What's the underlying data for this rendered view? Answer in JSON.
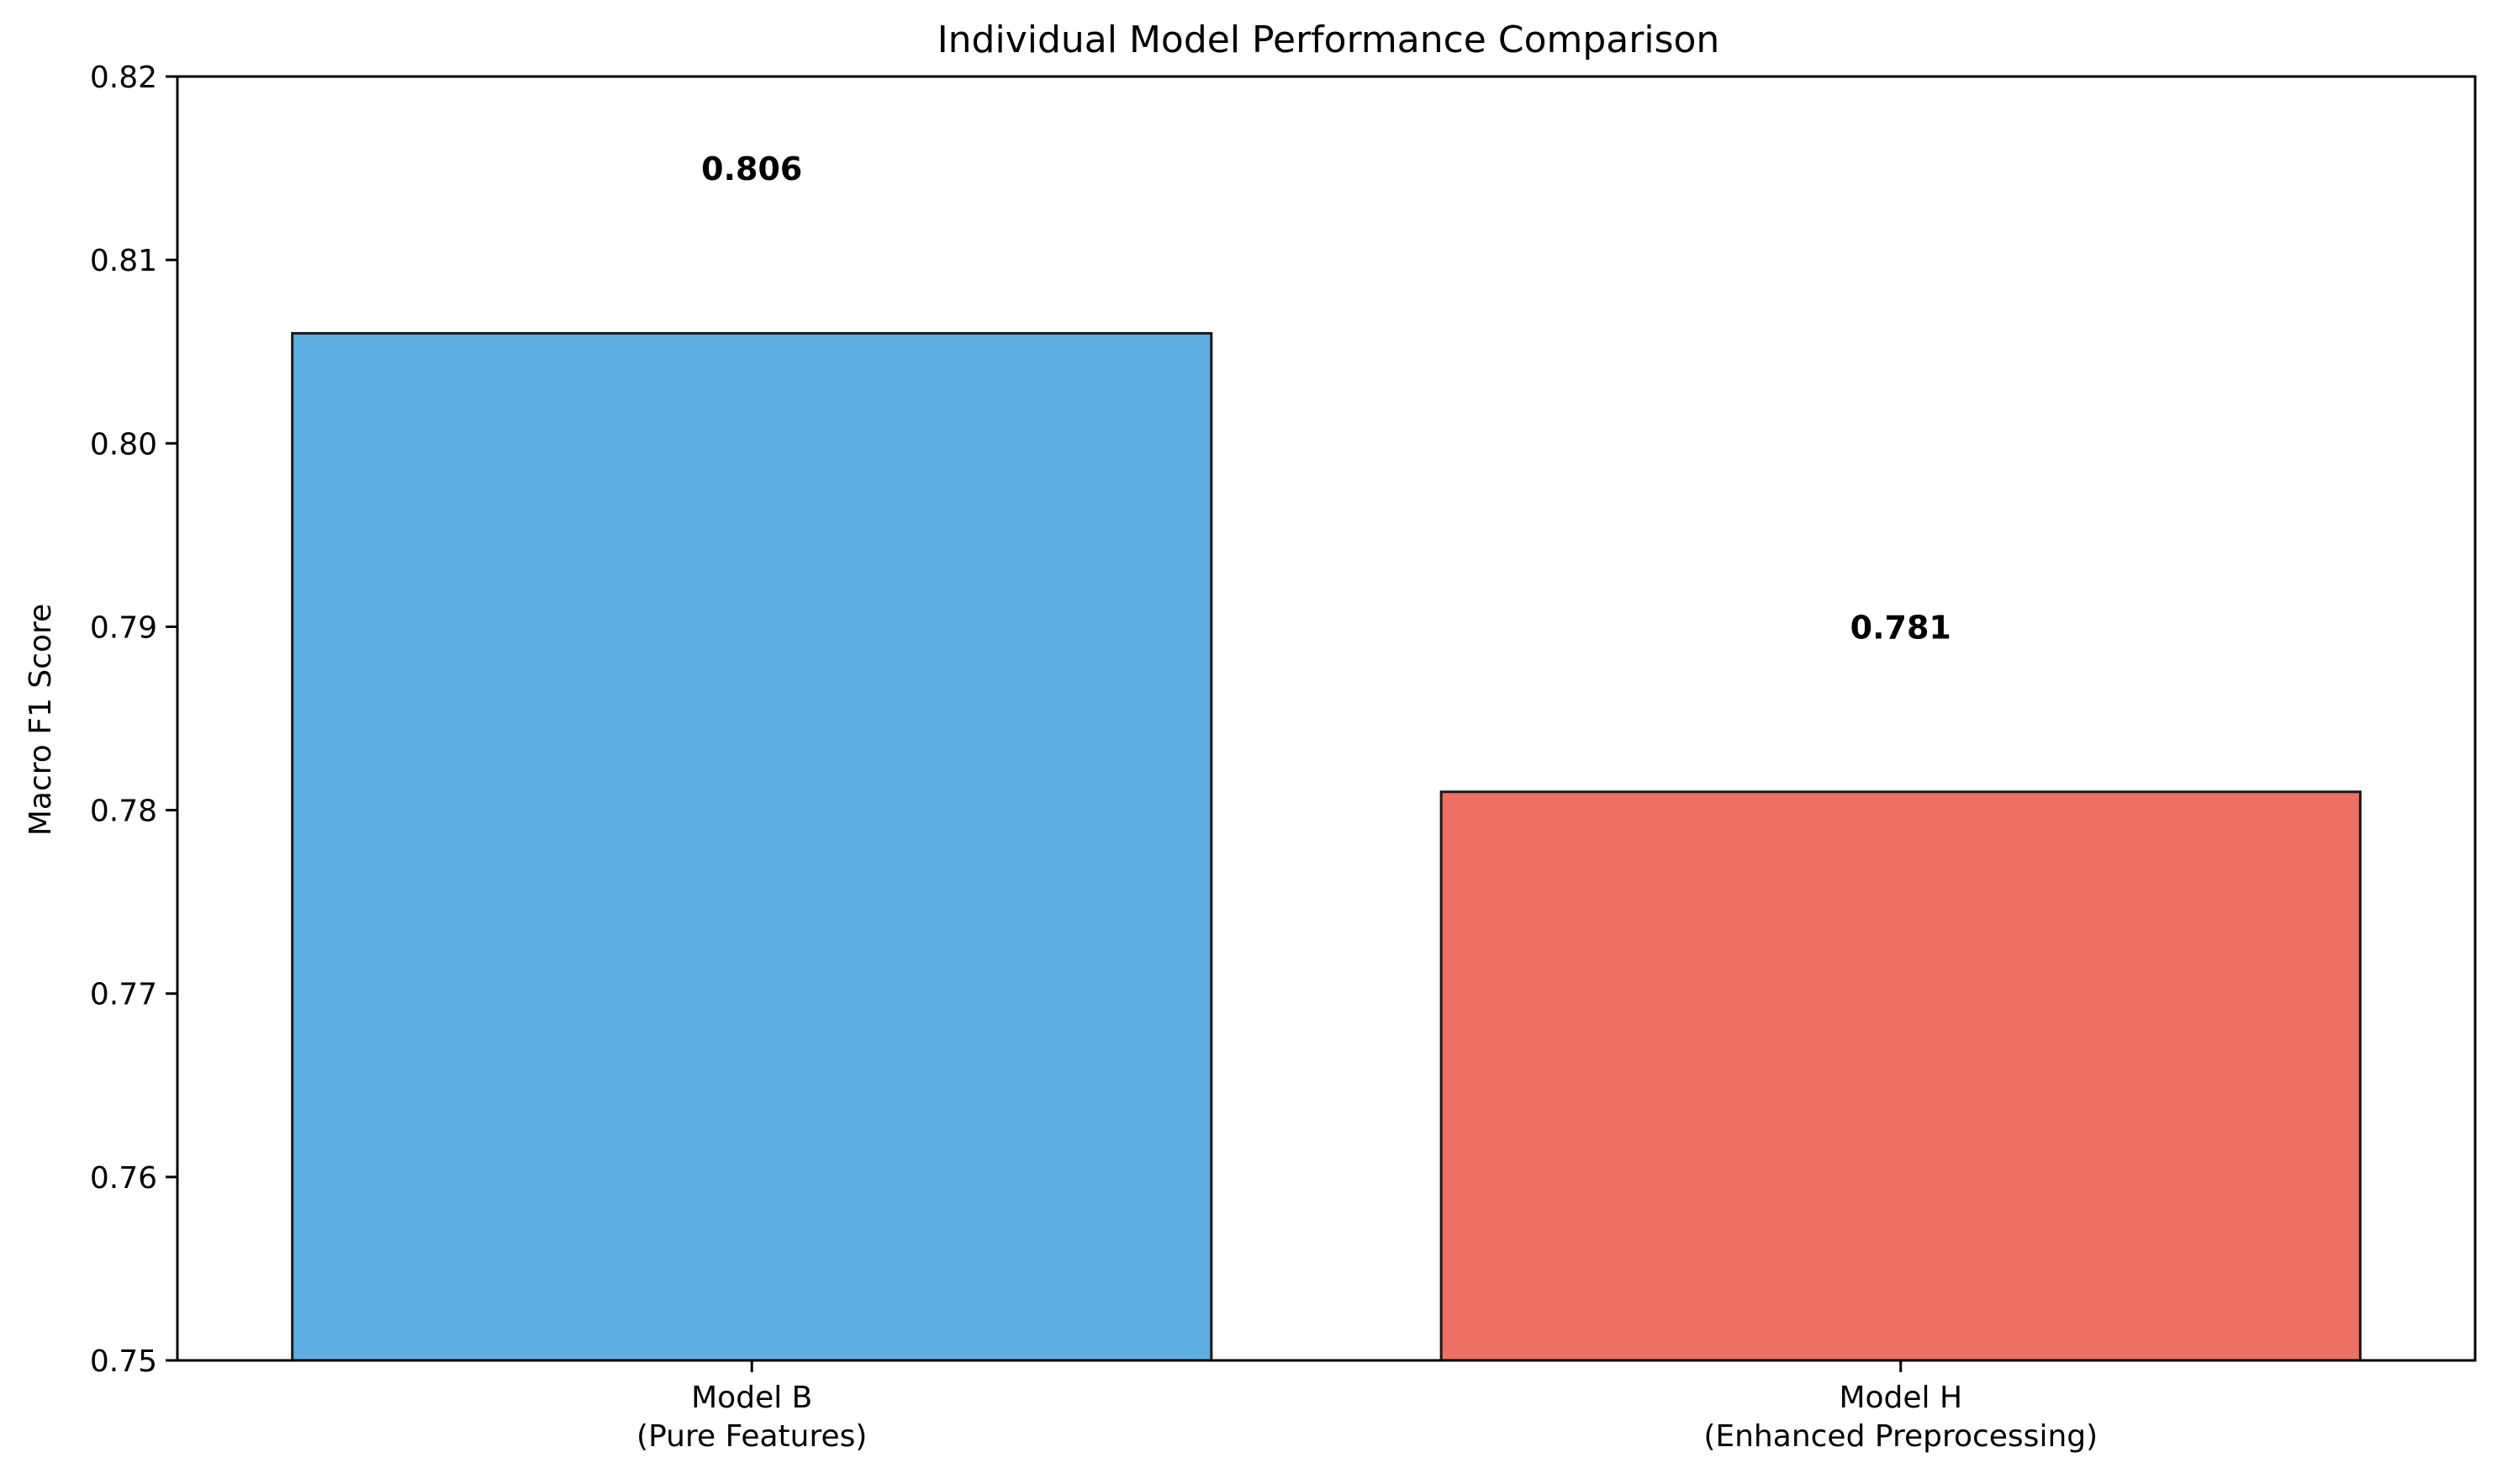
{
  "chart_data": {
    "type": "bar",
    "title": "Individual Model Performance Comparison",
    "xlabel": "",
    "ylabel": "Macro F1 Score",
    "ylim": [
      0.75,
      0.82
    ],
    "yticks": [
      0.75,
      0.76,
      0.77,
      0.78,
      0.79,
      0.8,
      0.81,
      0.82
    ],
    "ytick_labels": [
      "0.75",
      "0.76",
      "0.77",
      "0.78",
      "0.79",
      "0.80",
      "0.81",
      "0.82"
    ],
    "grid": false,
    "categories": [
      {
        "line1": "Model B",
        "line2": "(Pure Features)"
      },
      {
        "line1": "Model H",
        "line2": "(Enhanced Preprocessing)"
      }
    ],
    "values": [
      0.806,
      0.781
    ],
    "value_labels": [
      "0.806",
      "0.781"
    ],
    "colors": [
      "#5dade2",
      "#ec7063"
    ],
    "edge_color": "#1a1a1a"
  }
}
